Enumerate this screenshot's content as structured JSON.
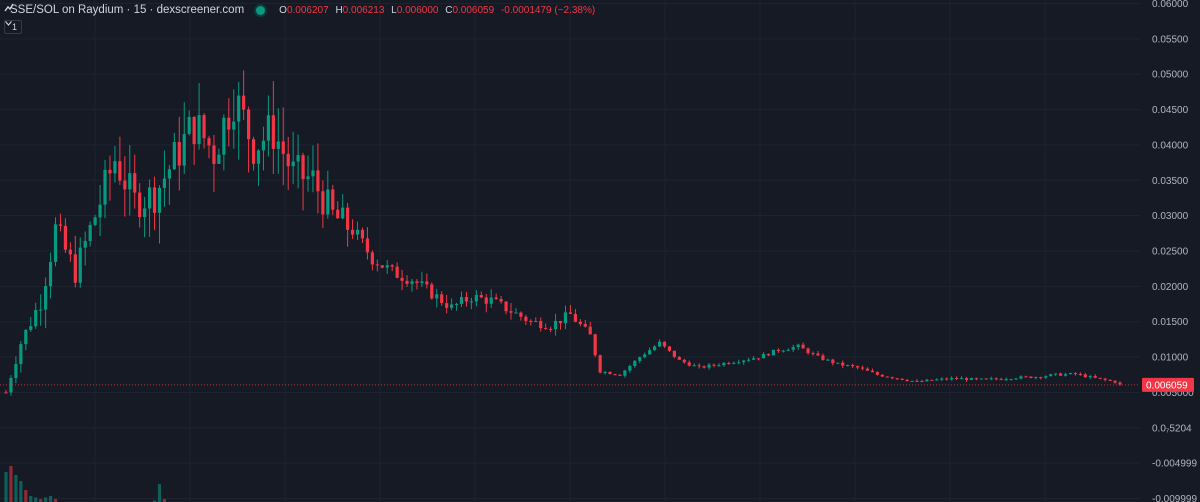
{
  "header": {
    "symbol": "SSE/SOL on Raydium · 15 · dexscreener.com",
    "open_key": "O",
    "open": "0.006207",
    "high_key": "H",
    "high": "0.006213",
    "low_key": "L",
    "low": "0.006000",
    "close_key": "C",
    "close": "0.006059",
    "change": "-0.0001479 (−2.38%)",
    "volume_toggle": "1",
    "chevron_icon": "chevron-down-icon",
    "status_icon": "green-dot-icon"
  },
  "colors": {
    "background": "#161a25",
    "up": "#089981",
    "down": "#f23645",
    "axis_text": "#b2b5be",
    "grid": "#1f2330"
  },
  "chart_data": {
    "type": "candlestick",
    "y_axis_ticks": [
      "0.06000",
      "0.05500",
      "0.05000",
      "0.04500",
      "0.04000",
      "0.03500",
      "0.03000",
      "0.02500",
      "0.02000",
      "0.01500",
      "0.01000",
      "0.005000",
      "0.0₇5204",
      "-0.004999",
      "-0.009999"
    ],
    "last_price": "0.006059",
    "ylim": [
      -0.0105,
      0.0605
    ],
    "grid": true,
    "price_path": [
      [
        0,
        0.005
      ],
      [
        3,
        0.012
      ],
      [
        7,
        0.018
      ],
      [
        10,
        0.028
      ],
      [
        14,
        0.022
      ],
      [
        18,
        0.03
      ],
      [
        22,
        0.038
      ],
      [
        26,
        0.032
      ],
      [
        30,
        0.033
      ],
      [
        34,
        0.038
      ],
      [
        38,
        0.043
      ],
      [
        42,
        0.039
      ],
      [
        46,
        0.047
      ],
      [
        50,
        0.04
      ],
      [
        54,
        0.042
      ],
      [
        58,
        0.036
      ],
      [
        62,
        0.035
      ],
      [
        66,
        0.03
      ],
      [
        70,
        0.028
      ],
      [
        74,
        0.024
      ],
      [
        78,
        0.022
      ],
      [
        82,
        0.021
      ],
      [
        86,
        0.019
      ],
      [
        90,
        0.017
      ],
      [
        94,
        0.0185
      ],
      [
        98,
        0.018
      ],
      [
        102,
        0.0165
      ],
      [
        106,
        0.015
      ],
      [
        110,
        0.0145
      ],
      [
        114,
        0.016
      ],
      [
        118,
        0.013
      ],
      [
        120,
        0.008
      ],
      [
        124,
        0.0075
      ],
      [
        128,
        0.01
      ],
      [
        132,
        0.012
      ],
      [
        136,
        0.0095
      ],
      [
        140,
        0.0085
      ],
      [
        144,
        0.009
      ],
      [
        148,
        0.0095
      ],
      [
        152,
        0.01
      ],
      [
        156,
        0.011
      ],
      [
        160,
        0.0115
      ],
      [
        164,
        0.01
      ],
      [
        168,
        0.009
      ],
      [
        172,
        0.0085
      ],
      [
        176,
        0.0075
      ],
      [
        180,
        0.007
      ],
      [
        184,
        0.0065
      ],
      [
        188,
        0.0068
      ],
      [
        192,
        0.007
      ],
      [
        196,
        0.0068
      ],
      [
        200,
        0.0069
      ],
      [
        204,
        0.0071
      ],
      [
        208,
        0.0072
      ],
      [
        212,
        0.0075
      ],
      [
        216,
        0.0076
      ],
      [
        220,
        0.007
      ],
      [
        224,
        0.0065
      ],
      [
        225,
        0.00606
      ]
    ],
    "volume_bars": [
      [
        0,
        0.01
      ],
      [
        1,
        0.012
      ],
      [
        2,
        0.009
      ],
      [
        3,
        0.007
      ],
      [
        4,
        0.004
      ],
      [
        5,
        0.002
      ],
      [
        6,
        0.0015
      ],
      [
        7,
        0.001
      ],
      [
        8,
        0.0015
      ],
      [
        9,
        0.002
      ],
      [
        10,
        0.001
      ],
      [
        30,
        0.0005
      ],
      [
        31,
        0.006
      ],
      [
        32,
        0.001
      ]
    ]
  }
}
